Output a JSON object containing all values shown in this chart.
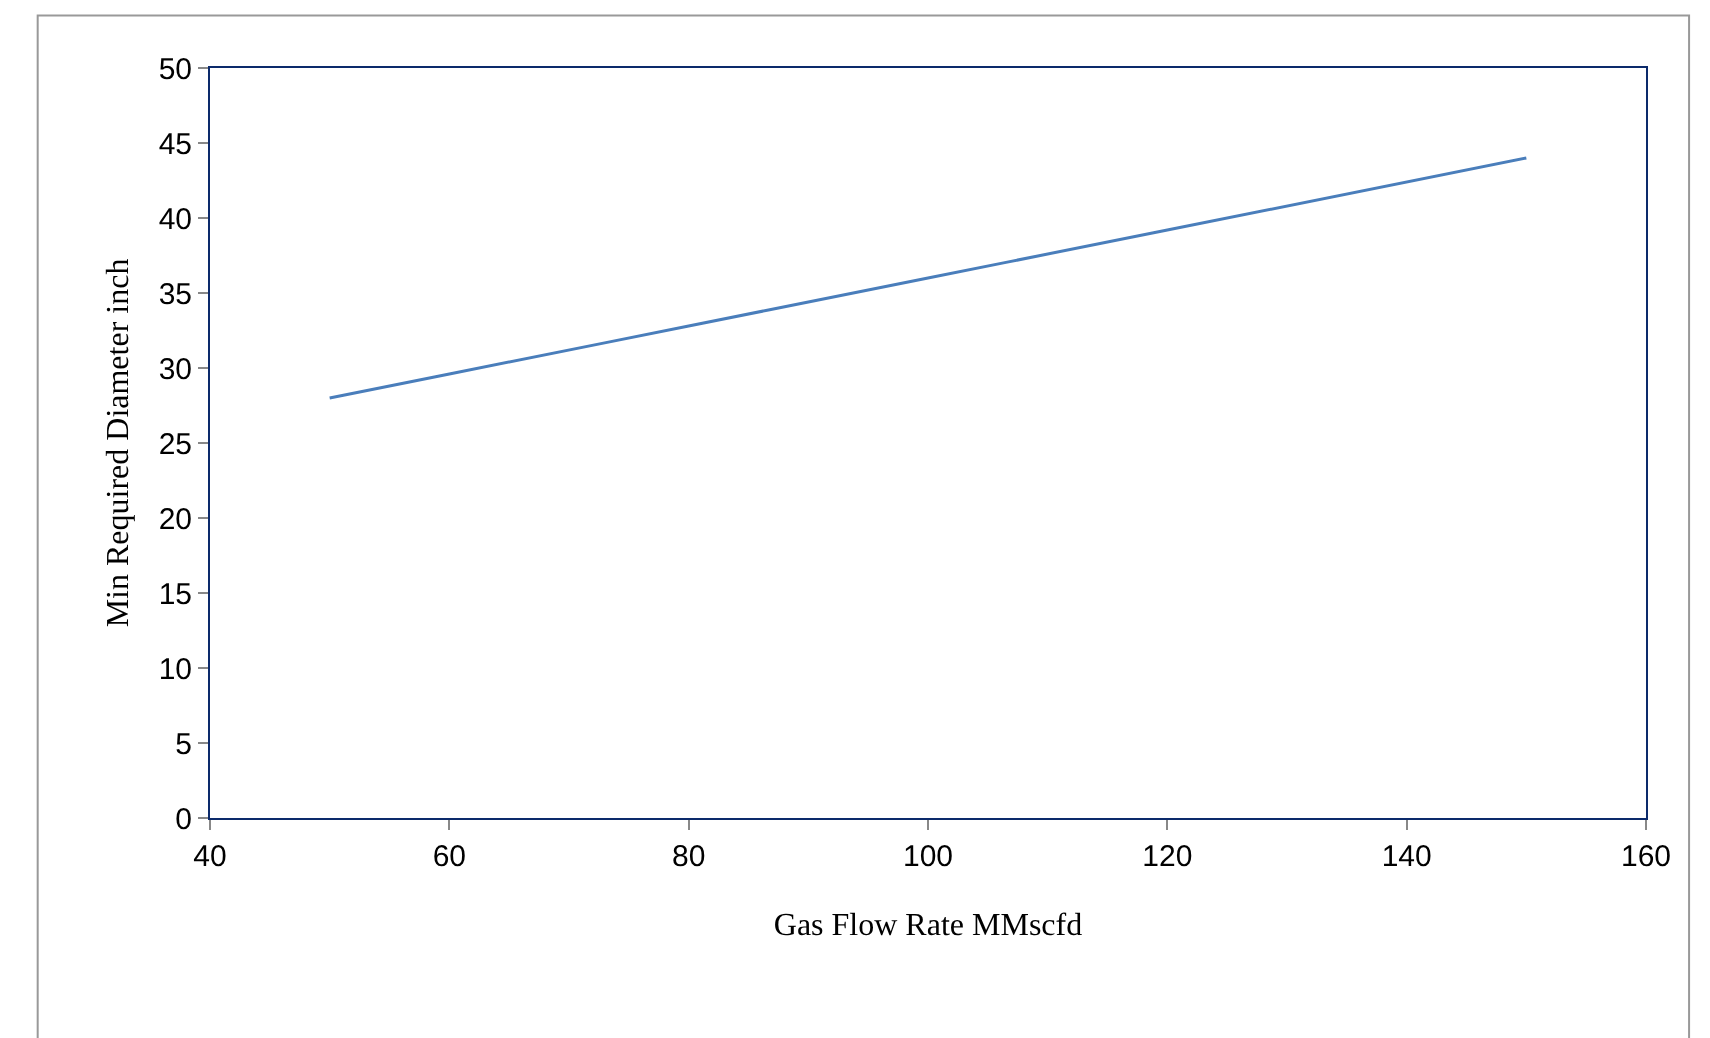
{
  "chart_data": {
    "type": "line",
    "xlabel": "Gas Flow Rate MMscfd",
    "ylabel": "Min Required Diameter inch",
    "x": [
      50,
      60,
      80,
      100,
      120,
      150
    ],
    "series": [
      {
        "color": "#4a7ebb",
        "values": [
          28,
          29.6,
          32.8,
          36,
          39.2,
          44
        ]
      }
    ],
    "xlim": [
      40,
      160
    ],
    "xticks": [
      40,
      60,
      80,
      100,
      120,
      140,
      160
    ],
    "ylim": [
      0,
      50
    ],
    "yticks": [
      0,
      5,
      10,
      15,
      20,
      25,
      30,
      35,
      40,
      45,
      50
    ],
    "legend": false,
    "marker": "none",
    "line_style": "solid"
  }
}
